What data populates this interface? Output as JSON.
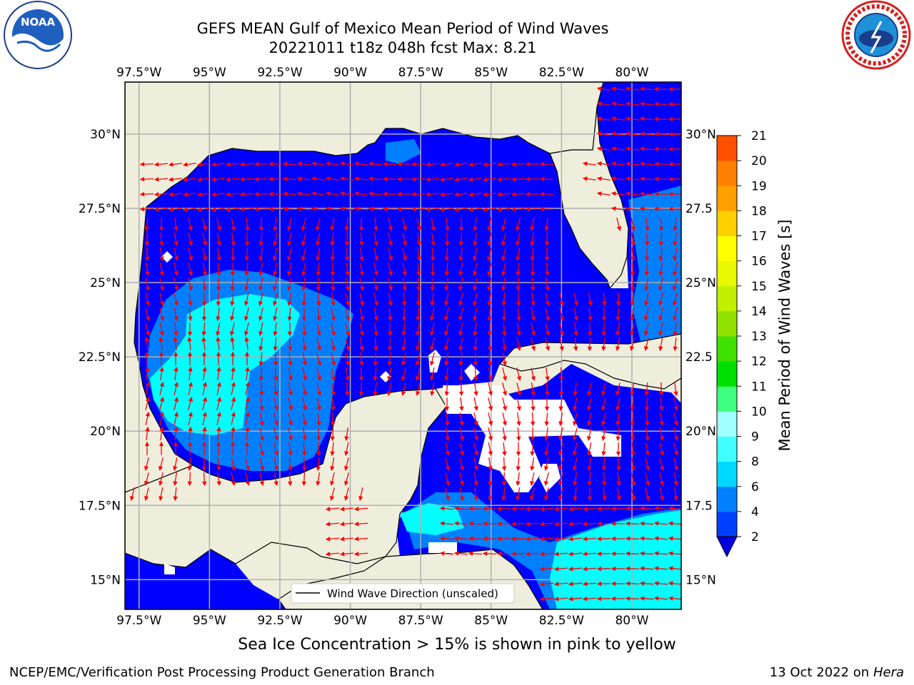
{
  "title": {
    "line1": "GEFS MEAN Gulf of Mexico Mean Period of Wind Waves",
    "line2": "20221011 t18z 048h fcst   Max: 8.21"
  },
  "logos": {
    "left": {
      "icon": "noaa-logo",
      "label": "NOAA"
    },
    "right": {
      "icon": "national-weather-service-logo"
    }
  },
  "map": {
    "lon_ticks": [
      "97.5°W",
      "95°W",
      "92.5°W",
      "90°W",
      "87.5°W",
      "85°W",
      "82.5°W",
      "80°W"
    ],
    "lat_ticks": [
      "30°N",
      "27.5°N",
      "25°N",
      "22.5°N",
      "20°N",
      "17.5°N",
      "15°N"
    ],
    "lat_ticks_right": [
      "30°N",
      "27.5",
      "25°N",
      "22.5",
      "20°N",
      "17.5",
      "15°N"
    ],
    "lon_values": [
      -97.5,
      -95,
      -92.5,
      -90,
      -87.5,
      -85,
      -82.5,
      -80
    ],
    "lat_values": [
      30,
      27.5,
      25,
      22.5,
      20,
      17.5,
      15
    ],
    "extent": {
      "lon_min": -98,
      "lon_max": -78.25,
      "lat_min": 14,
      "lat_max": 31.75
    },
    "legend_label": "Wind Wave Direction (unscaled)",
    "colors": {
      "land": "#efeedc",
      "ocean_low": "#0000ff",
      "ocean_mid": "#0080ff",
      "ocean_high": "#00ffff",
      "arrow": "#ff0000"
    }
  },
  "colorbar": {
    "label": "Mean Period of Wind Waves [s]",
    "ticks": [
      "2",
      "4",
      "6",
      "8",
      "9",
      "10",
      "11",
      "12",
      "13",
      "14",
      "15",
      "16",
      "17",
      "18",
      "19",
      "20",
      "21"
    ],
    "colors": [
      "#0040ff",
      "#0080ff",
      "#00d8ff",
      "#40ffff",
      "#a0ffff",
      "#40ff80",
      "#00e000",
      "#40e000",
      "#90e000",
      "#c0f000",
      "#e8f800",
      "#ffff00",
      "#ffd000",
      "#ffa000",
      "#ff8000",
      "#ff5000",
      "#ff2000",
      "#ff0000"
    ],
    "extend_color": "#0000e0"
  },
  "caption": "Sea Ice Concentration > 15% is shown in pink to yellow",
  "credit": "NCEP/EMC/Verification Post Processing Product Generation Branch",
  "date": {
    "text": "13 Oct 2022 on ",
    "machine": "Hera"
  }
}
